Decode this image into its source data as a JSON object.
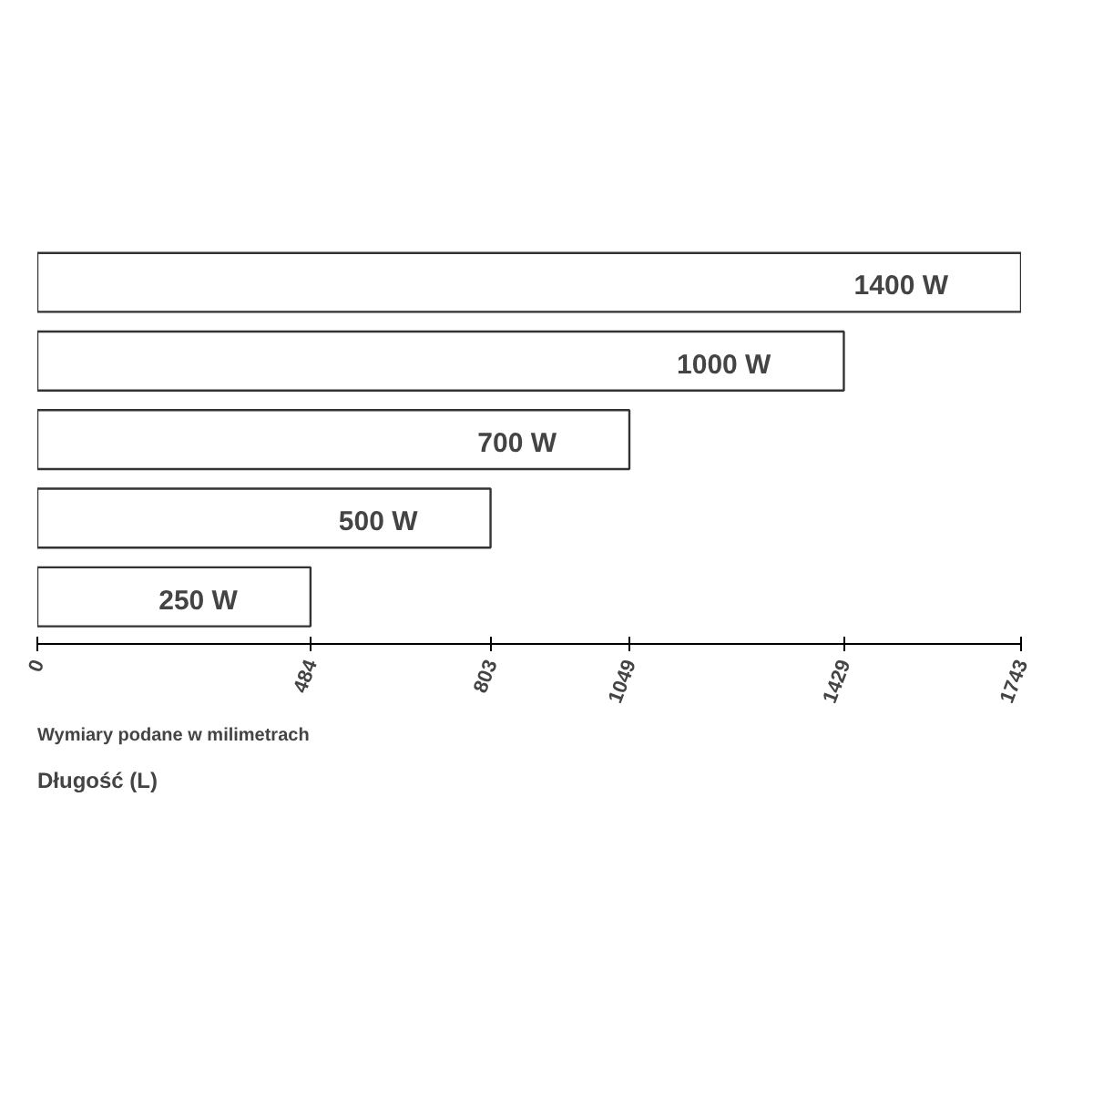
{
  "chart_data": {
    "type": "bar",
    "orientation": "horizontal",
    "categories": [
      "1400 W",
      "1000 W",
      "700 W",
      "500 W",
      "250 W"
    ],
    "values": [
      1743,
      1429,
      1049,
      803,
      484
    ],
    "color": "#ffffff",
    "xlabel": "Długość (L)",
    "xlim": [
      0,
      1743
    ],
    "xticks": [
      0,
      484,
      803,
      1049,
      1429,
      1743
    ],
    "tick_labels": "x",
    "grid": false,
    "annotations": [
      "Wymiary podane w milimetrach"
    ]
  }
}
